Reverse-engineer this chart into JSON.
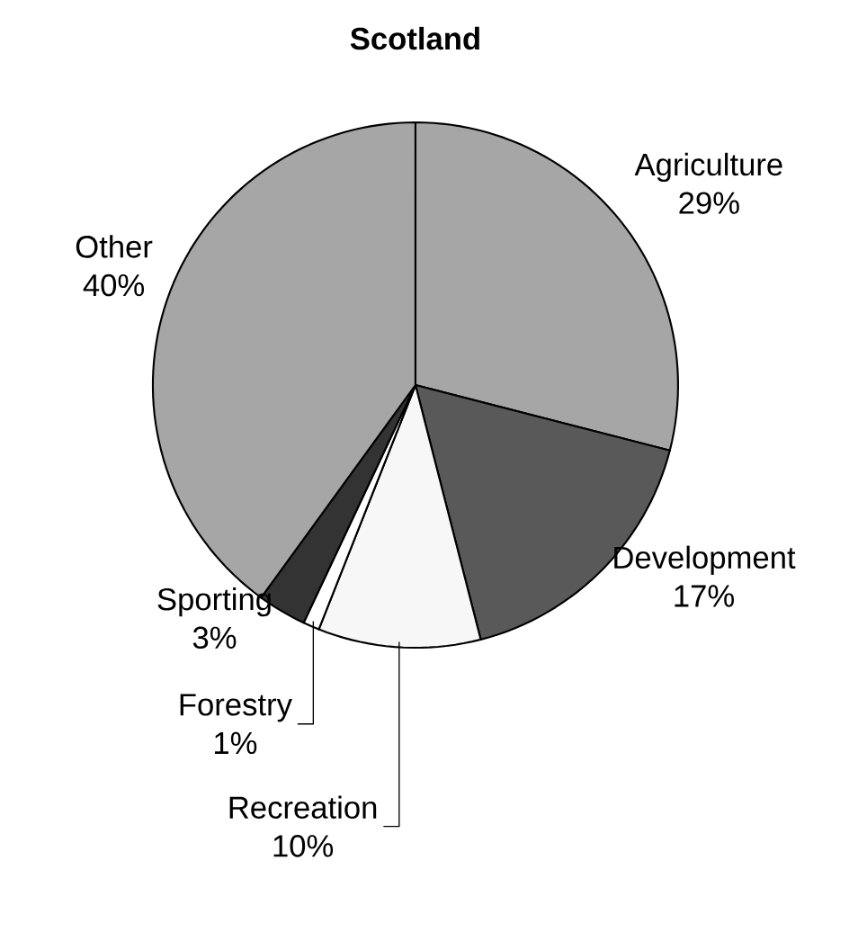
{
  "chart_data": {
    "type": "pie",
    "title": "**Scotland**",
    "categories": [
      "Agriculture",
      "Development",
      "Recreation",
      "Forestry",
      "Sporting",
      "Other"
    ],
    "values": [
      29,
      17,
      10,
      1,
      3,
      40
    ],
    "value_labels": [
      "29%",
      "17%",
      "10%",
      "1%",
      "3%",
      "40%"
    ],
    "colors": [
      "#a6a6a6",
      "#595959",
      "#f7f7f7",
      "#ffffff",
      "#333333",
      "#a6a6a6"
    ]
  }
}
